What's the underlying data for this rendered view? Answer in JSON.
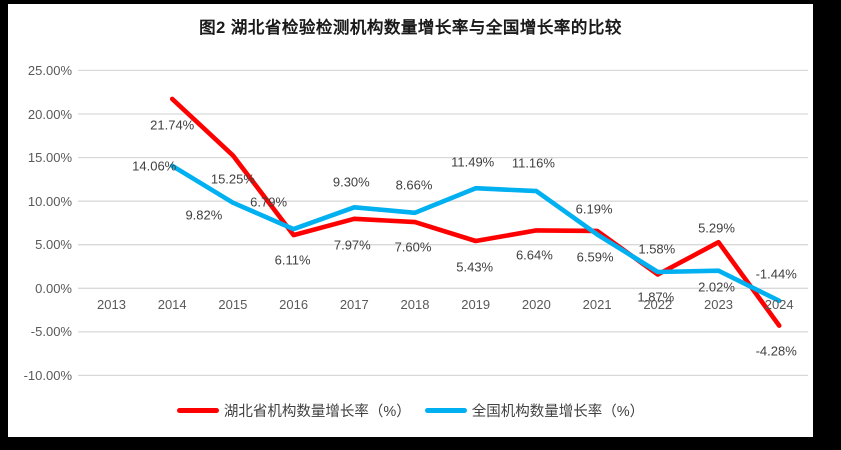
{
  "title": "图2  湖北省检验检测机构数量增长率与全国增长率的比较",
  "chart_data": {
    "type": "line",
    "categories": [
      "2013",
      "2014",
      "2015",
      "2016",
      "2017",
      "2018",
      "2019",
      "2020",
      "2021",
      "2022",
      "2023",
      "2024"
    ],
    "series": [
      {
        "name": "湖北省机构数量增长率（%）",
        "color": "#FF0000",
        "values": [
          null,
          21.74,
          15.25,
          6.11,
          7.97,
          7.6,
          5.43,
          6.64,
          6.59,
          1.58,
          5.29,
          -4.28
        ],
        "labels": [
          "",
          "21.74%",
          "15.25%",
          "6.11%",
          "7.97%",
          "7.60%",
          "5.43%",
          "6.64%",
          "6.59%",
          "1.58%",
          "5.29%",
          "-4.28%"
        ],
        "label_offsets": [
          null,
          [
            0,
            26
          ],
          [
            0,
            24
          ],
          [
            -1,
            25
          ],
          [
            -2,
            26
          ],
          [
            -2,
            25
          ],
          [
            -1,
            26
          ],
          [
            -2,
            25
          ],
          [
            -2,
            26
          ],
          [
            -1,
            -26
          ],
          [
            -2,
            -14
          ],
          [
            -3,
            25
          ]
        ]
      },
      {
        "name": "全国机构数量增长率（%）",
        "color": "#00B0F0",
        "values": [
          null,
          14.06,
          9.82,
          6.79,
          9.3,
          8.66,
          11.49,
          11.16,
          6.19,
          1.87,
          2.02,
          -1.44
        ],
        "labels": [
          "",
          "14.06%",
          "9.82%",
          "6.79%",
          "9.30%",
          "8.66%",
          "11.49%",
          "11.16%",
          "6.19%",
          "1.87%",
          "2.02%",
          "-1.44%"
        ],
        "label_offsets": [
          null,
          [
            -18,
            0
          ],
          [
            -29,
            12
          ],
          [
            -25,
            -27
          ],
          [
            -3,
            -25
          ],
          [
            -1,
            -28
          ],
          [
            -3,
            -26
          ],
          [
            -3,
            -28
          ],
          [
            -3,
            -25
          ],
          [
            -2,
            25
          ],
          [
            -2,
            16
          ],
          [
            -3,
            -27
          ]
        ]
      }
    ],
    "y_axis": {
      "tick_labels": [
        "25.00%",
        "20.00%",
        "15.00%",
        "10.00%",
        "5.00%",
        "0.00%",
        "-5.00%",
        "-10.00%"
      ],
      "tick_values": [
        25,
        20,
        15,
        10,
        5,
        0,
        -5,
        -10
      ],
      "min": -10,
      "max": 25
    },
    "grid": true,
    "legend_position": "bottom",
    "colors": {
      "gridline": "#D9D9D9",
      "axis_text": "#595959",
      "data_label_text": "#404040",
      "title_text": "#1a1a1a",
      "frame_border": "#000000"
    }
  }
}
